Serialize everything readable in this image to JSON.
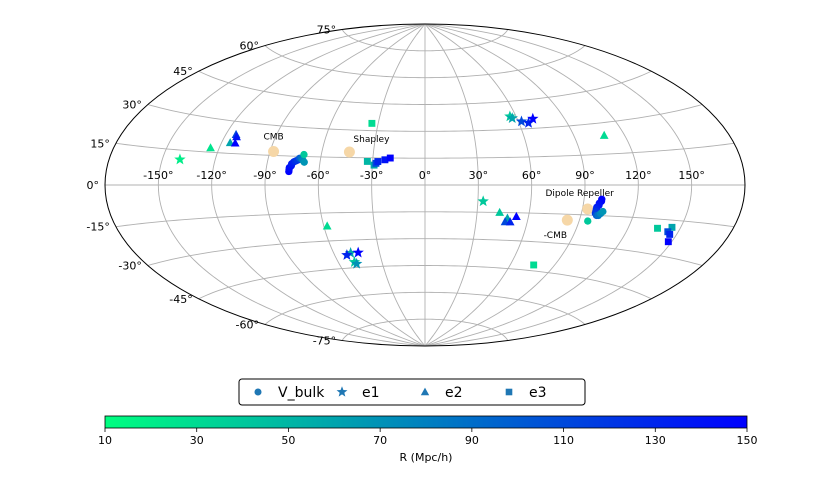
{
  "chart_data": {
    "type": "scatter",
    "projection": "aitoff",
    "title": "",
    "lon_ticks": [
      -150,
      -120,
      -90,
      -60,
      -30,
      0,
      30,
      60,
      90,
      120,
      150
    ],
    "lon_tick_labels": [
      "-150°",
      "-120°",
      "-90°",
      "-60°",
      "-30°",
      "0°",
      "30°",
      "60°",
      "90°",
      "120°",
      "150°"
    ],
    "lat_ticks": [
      75,
      60,
      45,
      30,
      15,
      0,
      -15,
      -30,
      -45,
      -60,
      -75
    ],
    "lat_tick_labels": [
      "75°",
      "60°",
      "45°",
      "30°",
      "15°",
      "0°",
      "-15°",
      "-30°",
      "-45°",
      "-60°",
      "-75°"
    ],
    "landmarks": [
      {
        "name": "CMB",
        "lon": -88,
        "lat": 17,
        "color": "#f6d7a7"
      },
      {
        "name": "Shapley",
        "lon": -44,
        "lat": 18,
        "color": "#f6d7a7"
      },
      {
        "name": "Dipole Repeller",
        "lon": 93,
        "lat": -12,
        "color": "#f6d7a7"
      },
      {
        "name": "-CMB",
        "lon": 83,
        "lat": -18,
        "color": "#f6d7a7"
      }
    ],
    "series": [
      {
        "name": "V_bulk",
        "marker": "circle",
        "points": [
          {
            "lon": -77,
            "lat": 7,
            "R": 150
          },
          {
            "lon": -77,
            "lat": 8,
            "R": 148
          },
          {
            "lon": -77,
            "lat": 9,
            "R": 144
          },
          {
            "lon": -76,
            "lat": 10,
            "R": 140
          },
          {
            "lon": -76,
            "lat": 11,
            "R": 136
          },
          {
            "lon": -75,
            "lat": 12,
            "R": 130
          },
          {
            "lon": -74,
            "lat": 12.5,
            "R": 124
          },
          {
            "lon": -73,
            "lat": 13,
            "R": 118
          },
          {
            "lon": -72,
            "lat": 14,
            "R": 100
          },
          {
            "lon": -71,
            "lat": 14,
            "R": 88
          },
          {
            "lon": -70,
            "lat": 13,
            "R": 76
          },
          {
            "lon": -69,
            "lat": 12,
            "R": 68
          },
          {
            "lon": -70,
            "lat": 16,
            "R": 40
          },
          {
            "lon": 100,
            "lat": -7,
            "R": 150
          },
          {
            "lon": 100,
            "lat": -8,
            "R": 148
          },
          {
            "lon": 99,
            "lat": -9,
            "R": 144
          },
          {
            "lon": 99,
            "lat": -10,
            "R": 140
          },
          {
            "lon": 98,
            "lat": -11,
            "R": 136
          },
          {
            "lon": 98,
            "lat": -12,
            "R": 130
          },
          {
            "lon": 98,
            "lat": -13,
            "R": 124
          },
          {
            "lon": 98,
            "lat": -14,
            "R": 118
          },
          {
            "lon": 99,
            "lat": -15,
            "R": 100
          },
          {
            "lon": 100,
            "lat": -15,
            "R": 88
          },
          {
            "lon": 101,
            "lat": -14,
            "R": 76
          },
          {
            "lon": 102,
            "lat": -13,
            "R": 68
          },
          {
            "lon": 95,
            "lat": -18,
            "R": 40
          }
        ]
      },
      {
        "name": "e1",
        "marker": "star",
        "points": [
          {
            "lon": -140,
            "lat": 11,
            "R": 20
          },
          {
            "lon": 56,
            "lat": 37,
            "R": 40
          },
          {
            "lon": 57,
            "lat": 36,
            "R": 60
          },
          {
            "lon": 62,
            "lat": 34,
            "R": 110
          },
          {
            "lon": 66,
            "lat": 33,
            "R": 130
          },
          {
            "lon": 70,
            "lat": 35,
            "R": 150
          },
          {
            "lon": 33,
            "lat": -9,
            "R": 40
          },
          {
            "lon": -49,
            "lat": -37,
            "R": 60
          },
          {
            "lon": -52,
            "lat": -38,
            "R": 130
          },
          {
            "lon": -49,
            "lat": -42,
            "R": 40
          },
          {
            "lon": -48,
            "lat": -43,
            "R": 70
          },
          {
            "lon": -44,
            "lat": -37,
            "R": 150
          }
        ]
      },
      {
        "name": "e2",
        "marker": "triangle",
        "points": [
          {
            "lon": -125,
            "lat": 17,
            "R": 25
          },
          {
            "lon": -115,
            "lat": 20,
            "R": 60
          },
          {
            "lon": -114,
            "lat": 24,
            "R": 110
          },
          {
            "lon": -113,
            "lat": 23,
            "R": 140
          },
          {
            "lon": -112,
            "lat": 20,
            "R": 150
          },
          {
            "lon": 108,
            "lat": 24,
            "R": 30
          },
          {
            "lon": 43,
            "lat": -15,
            "R": 40
          },
          {
            "lon": 48,
            "lat": -18,
            "R": 60
          },
          {
            "lon": 47,
            "lat": -20,
            "R": 110
          },
          {
            "lon": 50,
            "lat": -20,
            "R": 130
          },
          {
            "lon": 53,
            "lat": -17,
            "R": 150
          },
          {
            "lon": -58,
            "lat": -22,
            "R": 30
          }
        ]
      },
      {
        "name": "e3",
        "marker": "square",
        "points": [
          {
            "lon": -34,
            "lat": 34,
            "R": 30
          },
          {
            "lon": -33,
            "lat": 13,
            "R": 50
          },
          {
            "lon": -29,
            "lat": 11,
            "R": 60
          },
          {
            "lon": -28,
            "lat": 12,
            "R": 110
          },
          {
            "lon": -27,
            "lat": 13,
            "R": 130
          },
          {
            "lon": -23,
            "lat": 14,
            "R": 140
          },
          {
            "lon": -20,
            "lat": 15,
            "R": 150
          },
          {
            "lon": 76,
            "lat": -42,
            "R": 30
          },
          {
            "lon": 137,
            "lat": -19,
            "R": 40
          },
          {
            "lon": 145,
            "lat": -18,
            "R": 60
          },
          {
            "lon": 144,
            "lat": -20,
            "R": 110
          },
          {
            "lon": 146,
            "lat": -21,
            "R": 130
          },
          {
            "lon": 148,
            "lat": -24,
            "R": 150
          }
        ]
      }
    ],
    "legend": {
      "entries": [
        "V_bulk",
        "e1",
        "e2",
        "e3"
      ],
      "position": "bottom-center",
      "marker_color": "#1f77b4"
    },
    "colorbar": {
      "label": "R (Mpc/h)",
      "min": 10,
      "max": 150,
      "ticks": [
        10,
        30,
        50,
        70,
        90,
        110,
        130,
        150
      ],
      "color_low": "#00ff80",
      "color_high": "#0000ff"
    }
  }
}
